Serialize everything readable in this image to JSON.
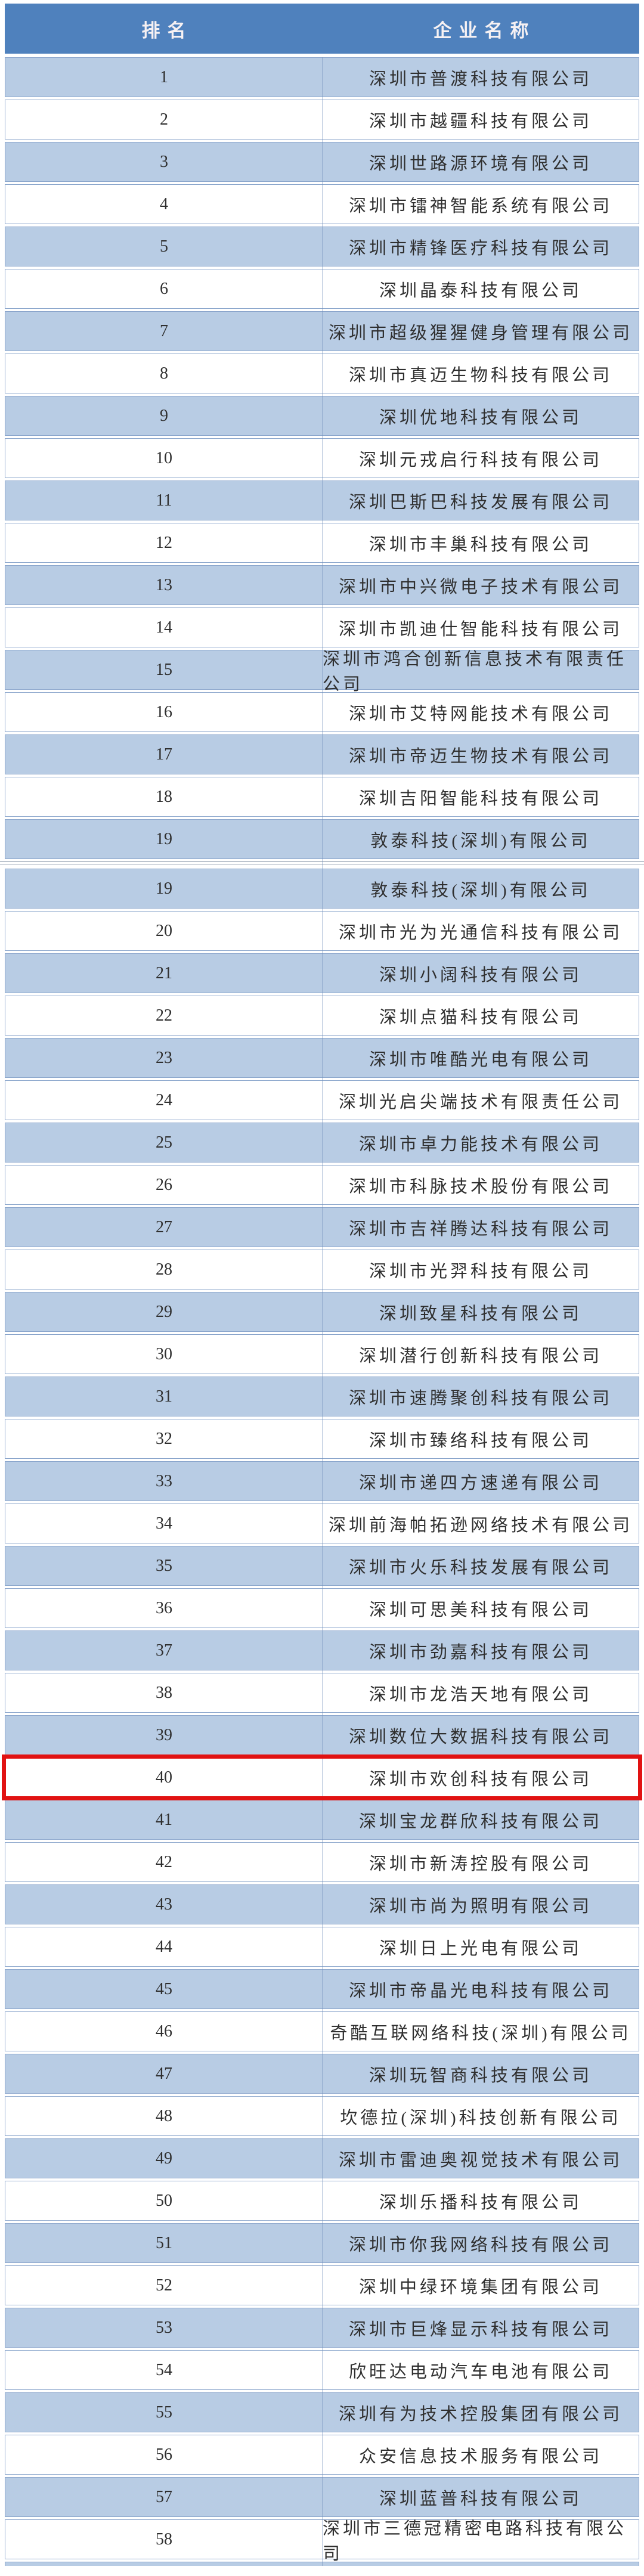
{
  "table": {
    "columns": [
      "排名",
      "企业名称"
    ],
    "highlight_rank": "40",
    "colors": {
      "header_bg": "#4f81bd",
      "header_text": "#f6f1f3",
      "row_blue": "#b8cce4",
      "row_white": "#ffffff",
      "row_border": "#8ba6cc",
      "column_divider": "#6d8cb8",
      "highlight_border": "#e11212",
      "body_text": "#2f2f2f"
    },
    "sections": [
      {
        "rows": [
          {
            "rank": "1",
            "name": "深圳市普渡科技有限公司"
          },
          {
            "rank": "2",
            "name": "深圳市越疆科技有限公司"
          },
          {
            "rank": "3",
            "name": "深圳世路源环境有限公司"
          },
          {
            "rank": "4",
            "name": "深圳市镭神智能系统有限公司"
          },
          {
            "rank": "5",
            "name": "深圳市精锋医疗科技有限公司"
          },
          {
            "rank": "6",
            "name": "深圳晶泰科技有限公司"
          },
          {
            "rank": "7",
            "name": "深圳市超级猩猩健身管理有限公司"
          },
          {
            "rank": "8",
            "name": "深圳市真迈生物科技有限公司"
          },
          {
            "rank": "9",
            "name": "深圳优地科技有限公司"
          },
          {
            "rank": "10",
            "name": "深圳元戎启行科技有限公司"
          },
          {
            "rank": "11",
            "name": "深圳巴斯巴科技发展有限公司"
          },
          {
            "rank": "12",
            "name": "深圳市丰巢科技有限公司"
          },
          {
            "rank": "13",
            "name": "深圳市中兴微电子技术有限公司"
          },
          {
            "rank": "14",
            "name": "深圳市凯迪仕智能科技有限公司"
          },
          {
            "rank": "15",
            "name": "深圳市鸿合创新信息技术有限责任公司"
          },
          {
            "rank": "16",
            "name": "深圳市艾特网能技术有限公司"
          },
          {
            "rank": "17",
            "name": "深圳市帝迈生物技术有限公司"
          },
          {
            "rank": "18",
            "name": "深圳吉阳智能科技有限公司"
          },
          {
            "rank": "19",
            "name": "敦泰科技(深圳)有限公司"
          }
        ]
      },
      {
        "rows": [
          {
            "rank": "19",
            "name": "敦泰科技(深圳)有限公司"
          },
          {
            "rank": "20",
            "name": "深圳市光为光通信科技有限公司"
          },
          {
            "rank": "21",
            "name": "深圳小阔科技有限公司"
          },
          {
            "rank": "22",
            "name": "深圳点猫科技有限公司"
          },
          {
            "rank": "23",
            "name": "深圳市唯酷光电有限公司"
          },
          {
            "rank": "24",
            "name": "深圳光启尖端技术有限责任公司"
          },
          {
            "rank": "25",
            "name": "深圳市卓力能技术有限公司"
          },
          {
            "rank": "26",
            "name": "深圳市科脉技术股份有限公司"
          },
          {
            "rank": "27",
            "name": "深圳市吉祥腾达科技有限公司"
          },
          {
            "rank": "28",
            "name": "深圳市光羿科技有限公司"
          },
          {
            "rank": "29",
            "name": "深圳致星科技有限公司"
          },
          {
            "rank": "30",
            "name": "深圳潜行创新科技有限公司"
          },
          {
            "rank": "31",
            "name": "深圳市速腾聚创科技有限公司"
          },
          {
            "rank": "32",
            "name": "深圳市臻络科技有限公司"
          },
          {
            "rank": "33",
            "name": "深圳市递四方速递有限公司"
          },
          {
            "rank": "34",
            "name": "深圳前海帕拓逊网络技术有限公司"
          },
          {
            "rank": "35",
            "name": "深圳市火乐科技发展有限公司"
          },
          {
            "rank": "36",
            "name": "深圳可思美科技有限公司"
          },
          {
            "rank": "37",
            "name": "深圳市劲嘉科技有限公司"
          },
          {
            "rank": "38",
            "name": "深圳市龙浩天地有限公司"
          },
          {
            "rank": "39",
            "name": "深圳数位大数据科技有限公司"
          },
          {
            "rank": "40",
            "name": "深圳市欢创科技有限公司"
          },
          {
            "rank": "41",
            "name": "深圳宝龙群欣科技有限公司"
          },
          {
            "rank": "42",
            "name": "深圳市新涛控股有限公司"
          },
          {
            "rank": "43",
            "name": "深圳市尚为照明有限公司"
          },
          {
            "rank": "44",
            "name": "深圳日上光电有限公司"
          },
          {
            "rank": "45",
            "name": "深圳市帝晶光电科技有限公司"
          },
          {
            "rank": "46",
            "name": "奇酷互联网络科技(深圳)有限公司"
          },
          {
            "rank": "47",
            "name": "深圳玩智商科技有限公司"
          },
          {
            "rank": "48",
            "name": "坎德拉(深圳)科技创新有限公司"
          },
          {
            "rank": "49",
            "name": "深圳市雷迪奥视觉技术有限公司"
          },
          {
            "rank": "50",
            "name": "深圳乐播科技有限公司"
          },
          {
            "rank": "51",
            "name": "深圳市你我网络科技有限公司"
          },
          {
            "rank": "52",
            "name": "深圳中绿环境集团有限公司"
          },
          {
            "rank": "53",
            "name": "深圳市巨烽显示科技有限公司"
          },
          {
            "rank": "54",
            "name": "欣旺达电动汽车电池有限公司"
          },
          {
            "rank": "55",
            "name": "深圳有为技术控股集团有限公司"
          },
          {
            "rank": "56",
            "name": "众安信息技术服务有限公司"
          },
          {
            "rank": "57",
            "name": "深圳蓝普科技有限公司"
          },
          {
            "rank": "58",
            "name": "深圳市三德冠精密电路科技有限公司"
          }
        ]
      }
    ],
    "partial_row_at_bottom": true
  }
}
